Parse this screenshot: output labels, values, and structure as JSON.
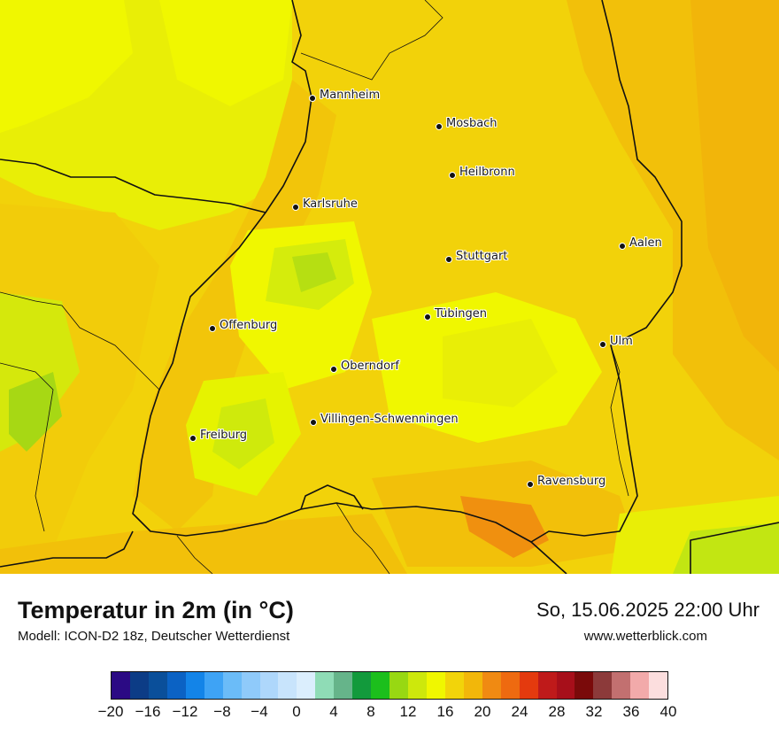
{
  "map": {
    "cities": [
      {
        "name": "Mannheim"
      },
      {
        "name": "Mosbach"
      },
      {
        "name": "Heilbronn"
      },
      {
        "name": "Karlsruhe"
      },
      {
        "name": "Aalen"
      },
      {
        "name": "Stuttgart"
      },
      {
        "name": "Tübingen"
      },
      {
        "name": "Offenburg"
      },
      {
        "name": "Ulm"
      },
      {
        "name": "Oberndorf"
      },
      {
        "name": "Villingen-Schwenningen"
      },
      {
        "name": "Freiburg"
      },
      {
        "name": "Ravensburg"
      }
    ]
  },
  "footer": {
    "title": "Temperatur in 2m (in °C)",
    "subtitle": "Modell: ICON-D2 18z, Deutscher Wetterdienst",
    "datetime": "So, 15.06.2025 22:00 Uhr",
    "website": "www.wetterblick.com"
  },
  "legend": {
    "colors": [
      "#2b0a84",
      "#0c3c86",
      "#0a4f9a",
      "#0b62c4",
      "#1384e8",
      "#3ea3f5",
      "#6bbcf8",
      "#8fcafa",
      "#aed7fb",
      "#c8e4fc",
      "#dbeefd",
      "#8fdcb6",
      "#66b48a",
      "#129a3c",
      "#1cbf1c",
      "#98d812",
      "#cde80c",
      "#f0f700",
      "#f2d40a",
      "#f2b70a",
      "#f08a12",
      "#ee6a10",
      "#e43a0e",
      "#bf1a1a",
      "#a70f1a",
      "#7a0a0a",
      "#8c3a3a",
      "#c27070",
      "#f2aaaa",
      "#fcdede"
    ],
    "ticks": [
      "−20",
      "−16",
      "−12",
      "−8",
      "−4",
      "0",
      "4",
      "8",
      "12",
      "16",
      "20",
      "24",
      "28",
      "32",
      "36",
      "40"
    ]
  }
}
